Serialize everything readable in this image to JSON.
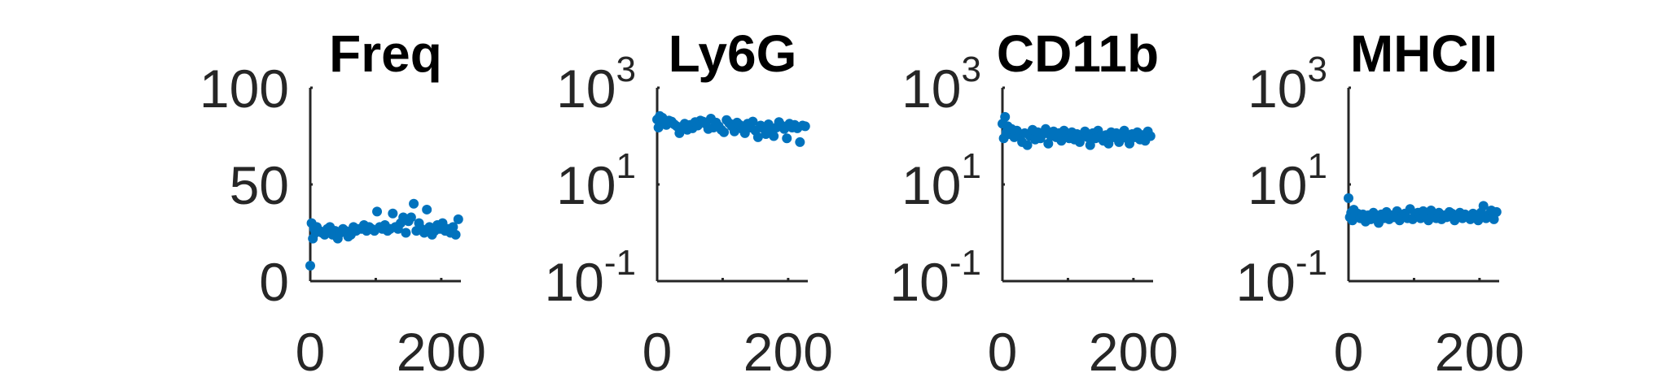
{
  "colors": {
    "marker": "#0072BD",
    "axis": "#262626",
    "title": "#000000"
  },
  "chart_data": [
    {
      "type": "scatter",
      "title": "Freq",
      "xlim": [
        0,
        230
      ],
      "ylim": [
        0,
        100
      ],
      "yscale": "linear",
      "xticks": [
        0,
        100,
        200
      ],
      "xtick_labels": [
        "0",
        "",
        "200"
      ],
      "yticks": [
        0,
        50,
        100
      ],
      "ytick_labels": [
        "0",
        "50",
        "100"
      ],
      "x": [
        0,
        2,
        4,
        6,
        8,
        10,
        14,
        18,
        22,
        26,
        30,
        34,
        38,
        42,
        46,
        50,
        54,
        58,
        62,
        66,
        70,
        74,
        78,
        82,
        86,
        90,
        94,
        98,
        102,
        106,
        110,
        114,
        118,
        122,
        126,
        130,
        134,
        138,
        142,
        146,
        150,
        154,
        158,
        162,
        166,
        170,
        174,
        178,
        182,
        186,
        190,
        194,
        198,
        202,
        206,
        210,
        214,
        218,
        222,
        226
      ],
      "y": [
        8,
        30,
        22,
        27,
        25,
        28,
        26,
        25,
        24,
        27,
        28,
        24,
        26,
        22,
        25,
        27,
        26,
        23,
        24,
        28,
        26,
        27,
        27,
        29,
        26,
        28,
        27,
        26,
        36,
        28,
        27,
        29,
        26,
        27,
        35,
        28,
        27,
        30,
        33,
        25,
        31,
        33,
        40,
        26,
        30,
        27,
        25,
        37,
        28,
        24,
        26,
        29,
        27,
        30,
        26,
        27,
        25,
        28,
        24,
        32
      ]
    },
    {
      "type": "scatter",
      "title": "Ly6G",
      "xlim": [
        0,
        230
      ],
      "ylim": [
        0.1,
        1000
      ],
      "yscale": "log",
      "xticks": [
        0,
        100,
        200
      ],
      "xtick_labels": [
        "0",
        "",
        "200"
      ],
      "yticks": [
        0.1,
        10,
        1000
      ],
      "ytick_labels": [
        {
          "base": "10",
          "exp": "-1"
        },
        {
          "base": "10",
          "exp": "1"
        },
        {
          "base": "10",
          "exp": "3"
        }
      ],
      "x": [
        0,
        2,
        4,
        6,
        8,
        10,
        14,
        18,
        22,
        26,
        30,
        34,
        38,
        42,
        46,
        50,
        54,
        58,
        62,
        66,
        70,
        74,
        78,
        82,
        86,
        90,
        94,
        98,
        102,
        106,
        110,
        114,
        118,
        122,
        126,
        130,
        134,
        138,
        142,
        146,
        150,
        154,
        158,
        162,
        166,
        170,
        174,
        178,
        182,
        186,
        190,
        194,
        198,
        202,
        206,
        210,
        214,
        218,
        222,
        226
      ],
      "y": [
        220,
        150,
        260,
        190,
        240,
        180,
        170,
        210,
        200,
        175,
        160,
        115,
        150,
        180,
        135,
        170,
        145,
        195,
        165,
        210,
        200,
        180,
        140,
        230,
        150,
        190,
        160,
        135,
        120,
        215,
        185,
        160,
        125,
        190,
        170,
        140,
        115,
        180,
        150,
        200,
        130,
        95,
        165,
        145,
        110,
        175,
        135,
        100,
        150,
        195,
        165,
        140,
        90,
        180,
        150,
        170,
        145,
        75,
        165,
        160
      ]
    },
    {
      "type": "scatter",
      "title": "CD11b",
      "xlim": [
        0,
        230
      ],
      "ylim": [
        0.1,
        1000
      ],
      "yscale": "log",
      "xticks": [
        0,
        100,
        200
      ],
      "xtick_labels": [
        "0",
        "",
        "200"
      ],
      "yticks": [
        0.1,
        10,
        1000
      ],
      "ytick_labels": [
        {
          "base": "10",
          "exp": "-1"
        },
        {
          "base": "10",
          "exp": "1"
        },
        {
          "base": "10",
          "exp": "3"
        }
      ],
      "x": [
        0,
        2,
        4,
        6,
        8,
        10,
        14,
        18,
        22,
        26,
        30,
        34,
        38,
        42,
        46,
        50,
        54,
        58,
        62,
        66,
        70,
        74,
        78,
        82,
        86,
        90,
        94,
        98,
        102,
        106,
        110,
        114,
        118,
        122,
        126,
        130,
        134,
        138,
        142,
        146,
        150,
        154,
        158,
        162,
        166,
        170,
        174,
        178,
        182,
        186,
        190,
        194,
        198,
        202,
        206,
        210,
        214,
        218,
        222,
        226
      ],
      "y": [
        180,
        90,
        250,
        120,
        160,
        110,
        140,
        95,
        130,
        105,
        75,
        115,
        65,
        100,
        135,
        85,
        120,
        90,
        110,
        140,
        70,
        100,
        125,
        95,
        115,
        80,
        130,
        105,
        90,
        120,
        85,
        110,
        75,
        100,
        125,
        95,
        65,
        115,
        90,
        130,
        100,
        80,
        105,
        70,
        120,
        95,
        115,
        75,
        100,
        130,
        90,
        70,
        110,
        95,
        120,
        85,
        105,
        80,
        125,
        100
      ]
    },
    {
      "type": "scatter",
      "title": "MHCII",
      "xlim": [
        0,
        230
      ],
      "ylim": [
        0.1,
        1000
      ],
      "yscale": "log",
      "xticks": [
        0,
        100,
        200
      ],
      "xtick_labels": [
        "0",
        "",
        "200"
      ],
      "yticks": [
        0.1,
        10,
        1000
      ],
      "ytick_labels": [
        {
          "base": "10",
          "exp": "-1"
        },
        {
          "base": "10",
          "exp": "1"
        },
        {
          "base": "10",
          "exp": "3"
        }
      ],
      "x": [
        0,
        2,
        4,
        6,
        8,
        10,
        14,
        18,
        22,
        26,
        30,
        34,
        38,
        42,
        46,
        50,
        54,
        58,
        62,
        66,
        70,
        74,
        78,
        82,
        86,
        90,
        94,
        98,
        102,
        106,
        110,
        114,
        118,
        122,
        126,
        130,
        134,
        138,
        142,
        146,
        150,
        154,
        158,
        162,
        166,
        170,
        174,
        178,
        182,
        186,
        190,
        194,
        198,
        202,
        206,
        210,
        214,
        218,
        222,
        226
      ],
      "y": [
        5.2,
        2.1,
        2.6,
        1.8,
        3.0,
        2.2,
        2.5,
        2.0,
        2.4,
        1.7,
        2.3,
        1.9,
        2.6,
        2.1,
        1.6,
        2.4,
        2.0,
        2.7,
        1.9,
        2.3,
        2.1,
        2.8,
        1.8,
        2.2,
        2.5,
        2.0,
        3.1,
        1.9,
        2.4,
        2.6,
        2.0,
        2.8,
        2.2,
        1.8,
        2.9,
        2.4,
        2.0,
        2.6,
        1.9,
        2.3,
        2.1,
        2.7,
        2.5,
        1.8,
        2.2,
        2.6,
        2.0,
        2.4,
        2.1,
        1.9,
        2.5,
        2.3,
        1.8,
        2.6,
        3.6,
        2.0,
        2.4,
        2.9,
        1.9,
        2.7
      ]
    }
  ]
}
